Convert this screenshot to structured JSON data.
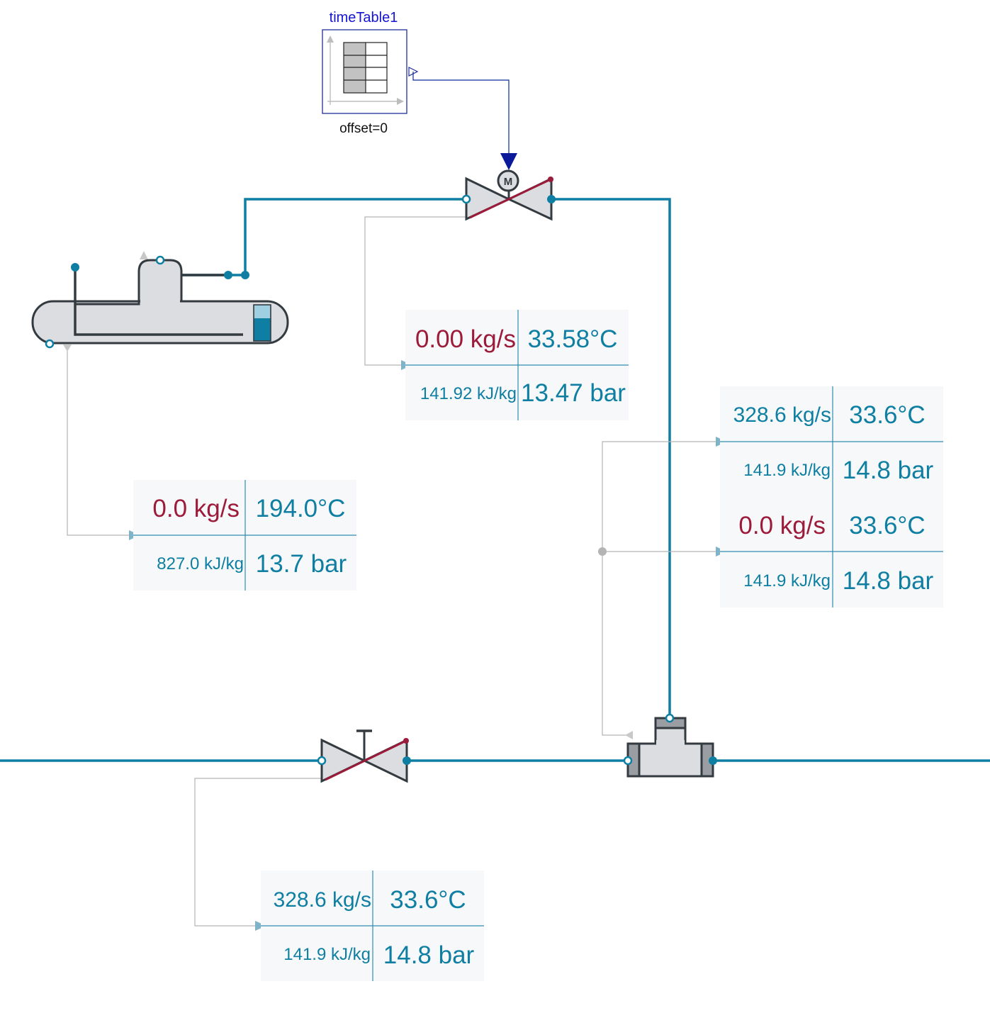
{
  "colors": {
    "pipe": "#0e7fa3",
    "mass_flow_red": "#9c1a3a",
    "label_teal": "#0e7fa3",
    "block_title_blue": "#1414d2",
    "signal_gray": "#b4b4b4",
    "body_fill": "#dcdde0"
  },
  "timetable": {
    "name": "timeTable1",
    "param": "offset=0"
  },
  "icons": {
    "timetable": "table-icon",
    "motor_valve": "motor-valve-icon",
    "manual_valve": "manual-valve-icon",
    "drum": "steam-drum-icon",
    "tee": "tee-junction-icon",
    "motor_badge": "M"
  },
  "cards": {
    "motor_valve": {
      "mass_flow": "0.00 kg/s",
      "temperature": "33.58°C",
      "enthalpy": "141.92 kJ/kg",
      "pressure": "13.47 bar"
    },
    "drum_outlet": {
      "mass_flow": "0.0 kg/s",
      "temperature": "194.0°C",
      "enthalpy": "827.0 kJ/kg",
      "pressure": "13.7 bar"
    },
    "tee_main": {
      "mass_flow": "328.6 kg/s",
      "temperature": "33.6°C",
      "enthalpy": "141.9 kJ/kg",
      "pressure": "14.8 bar"
    },
    "tee_branch": {
      "mass_flow": "0.0 kg/s",
      "temperature": "33.6°C",
      "enthalpy": "141.9 kJ/kg",
      "pressure": "14.8 bar"
    },
    "manual_valve": {
      "mass_flow": "328.6 kg/s",
      "temperature": "33.6°C",
      "enthalpy": "141.9 kJ/kg",
      "pressure": "14.8 bar"
    }
  }
}
